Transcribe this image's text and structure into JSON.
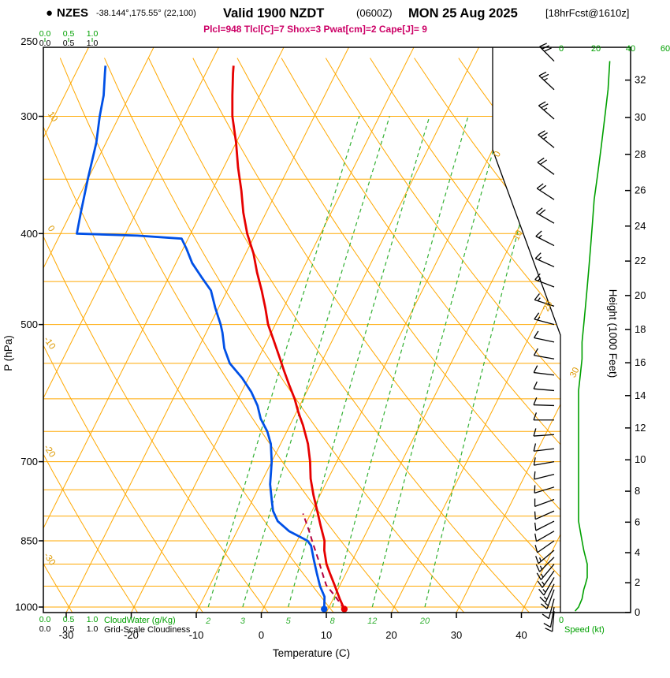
{
  "title": {
    "bullet": "●",
    "station": "NZES",
    "coords": "-38.144°,175.55° (22,100)",
    "valid": "Valid 1900 NZDT",
    "utc": "(0600Z)",
    "date": "MON 25 Aug 2025",
    "fcst": "[18hrFcst@1610z]"
  },
  "params_line": "Plcl=948 Tlcl[C]=7 Shox=3 Pwat[cm]=2 Cape[J]= 9",
  "axes": {
    "pressure_label": "P (hPa)",
    "pressure_ticks": [
      250,
      300,
      400,
      500,
      700,
      850,
      1000
    ],
    "temp_label": "Temperature (C)",
    "temp_ticks": [
      -30,
      -20,
      -10,
      0,
      10,
      20,
      30,
      40
    ],
    "height_label": "Height (1000 Feet)",
    "height_ticks": [
      0,
      2,
      4,
      6,
      8,
      10,
      12,
      14,
      16,
      18,
      20,
      22,
      24,
      26,
      28,
      30,
      32
    ],
    "speed_label": "Speed (kt)",
    "speed_ticks": [
      0,
      20,
      40,
      60
    ],
    "speed_zero_bottom": "0",
    "cloudwater_label": "CloudWater (g/Kg)",
    "cloudiness_label": "Grid-Scale Cloudiness",
    "cloud_scale": [
      "0.0",
      "0.5",
      "1.0"
    ]
  },
  "chart_data": {
    "type": "skewt-log-p",
    "pressure_range_hpa": [
      250,
      1000
    ],
    "temp_axis_range_c": [
      -30,
      40
    ],
    "mixing_ratio_lines_gkg": [
      2,
      3,
      5,
      8,
      12,
      20
    ],
    "isotherm_label_values_c": [
      0,
      10,
      20,
      30
    ],
    "theta_label_values_c": [
      10,
      0,
      -10,
      -20,
      -30
    ],
    "temperature_profile": [
      [
        1005,
        12.5
      ],
      [
        980,
        11.0
      ],
      [
        950,
        9.3
      ],
      [
        920,
        7.5
      ],
      [
        900,
        6.3
      ],
      [
        870,
        4.9
      ],
      [
        850,
        4.2
      ],
      [
        820,
        2.5
      ],
      [
        790,
        0.8
      ],
      [
        760,
        -1.0
      ],
      [
        730,
        -2.7
      ],
      [
        700,
        -4.1
      ],
      [
        670,
        -5.8
      ],
      [
        640,
        -8.0
      ],
      [
        620,
        -9.7
      ],
      [
        600,
        -11.3
      ],
      [
        580,
        -13.2
      ],
      [
        560,
        -15.1
      ],
      [
        540,
        -17.0
      ],
      [
        520,
        -19.0
      ],
      [
        500,
        -21.1
      ],
      [
        480,
        -22.8
      ],
      [
        460,
        -24.7
      ],
      [
        440,
        -26.8
      ],
      [
        420,
        -28.8
      ],
      [
        400,
        -31.3
      ],
      [
        380,
        -33.5
      ],
      [
        360,
        -35.5
      ],
      [
        340,
        -37.8
      ],
      [
        320,
        -40.0
      ],
      [
        300,
        -42.6
      ],
      [
        285,
        -44.2
      ],
      [
        270,
        -45.8
      ],
      [
        265,
        -46.3
      ]
    ],
    "dewpoint_profile": [
      [
        1005,
        9.4
      ],
      [
        975,
        8.5
      ],
      [
        950,
        7.0
      ],
      [
        920,
        5.5
      ],
      [
        890,
        4.0
      ],
      [
        860,
        2.5
      ],
      [
        850,
        1.6
      ],
      [
        830,
        -2.0
      ],
      [
        810,
        -4.5
      ],
      [
        790,
        -6.0
      ],
      [
        770,
        -7.0
      ],
      [
        740,
        -8.5
      ],
      [
        700,
        -10.0
      ],
      [
        670,
        -11.5
      ],
      [
        650,
        -13.0
      ],
      [
        630,
        -15.0
      ],
      [
        610,
        -16.5
      ],
      [
        590,
        -18.5
      ],
      [
        570,
        -21.0
      ],
      [
        550,
        -24.0
      ],
      [
        530,
        -26.0
      ],
      [
        510,
        -27.5
      ],
      [
        500,
        -28.4
      ],
      [
        480,
        -30.5
      ],
      [
        460,
        -32.5
      ],
      [
        445,
        -35.0
      ],
      [
        430,
        -37.5
      ],
      [
        415,
        -39.5
      ],
      [
        405,
        -41.0
      ],
      [
        402,
        -48.0
      ],
      [
        400,
        -57.5
      ],
      [
        380,
        -58.5
      ],
      [
        350,
        -60.0
      ],
      [
        320,
        -61.5
      ],
      [
        300,
        -63.0
      ],
      [
        285,
        -64.0
      ],
      [
        270,
        -65.5
      ],
      [
        265,
        -66.0
      ]
    ],
    "parcel_path": [
      [
        1005,
        12.5
      ],
      [
        975,
        10.2
      ],
      [
        948,
        7.9
      ],
      [
        930,
        6.9
      ],
      [
        910,
        5.8
      ],
      [
        890,
        4.7
      ],
      [
        870,
        3.5
      ],
      [
        850,
        2.3
      ],
      [
        830,
        1.1
      ],
      [
        810,
        -0.2
      ],
      [
        795,
        -1.2
      ]
    ],
    "wind_barbs_p_dir_spd": [
      [
        1010,
        185,
        8
      ],
      [
        1000,
        190,
        10
      ],
      [
        980,
        195,
        12
      ],
      [
        958,
        200,
        13
      ],
      [
        945,
        205,
        14
      ],
      [
        930,
        210,
        15
      ],
      [
        915,
        215,
        15
      ],
      [
        900,
        220,
        15
      ],
      [
        885,
        225,
        14
      ],
      [
        870,
        230,
        13
      ],
      [
        850,
        235,
        12
      ],
      [
        830,
        240,
        11
      ],
      [
        810,
        243,
        10
      ],
      [
        790,
        246,
        10
      ],
      [
        768,
        250,
        10
      ],
      [
        745,
        253,
        10
      ],
      [
        722,
        256,
        10
      ],
      [
        700,
        260,
        10
      ],
      [
        678,
        263,
        10
      ],
      [
        655,
        266,
        10
      ],
      [
        632,
        270,
        10
      ],
      [
        610,
        272,
        10
      ],
      [
        588,
        275,
        10
      ],
      [
        566,
        277,
        11
      ],
      [
        544,
        280,
        12
      ],
      [
        522,
        282,
        12
      ],
      [
        500,
        285,
        13
      ],
      [
        478,
        288,
        14
      ],
      [
        456,
        291,
        15
      ],
      [
        434,
        294,
        16
      ],
      [
        412,
        297,
        17
      ],
      [
        390,
        300,
        18
      ],
      [
        368,
        303,
        19
      ],
      [
        346,
        306,
        21
      ],
      [
        324,
        309,
        23
      ],
      [
        302,
        311,
        25
      ],
      [
        281,
        313,
        27
      ],
      [
        262,
        315,
        28
      ]
    ],
    "colors": {
      "grid": "#FFA800",
      "grid_label": "#DD9900",
      "mixing": "#33B033",
      "temperature": "#E60000",
      "dewpoint": "#0050E6",
      "parcel": "#B30040",
      "wind": "#000000",
      "speed": "#00A000",
      "params": "#CC0066",
      "cloudwater": "#00A000"
    }
  }
}
